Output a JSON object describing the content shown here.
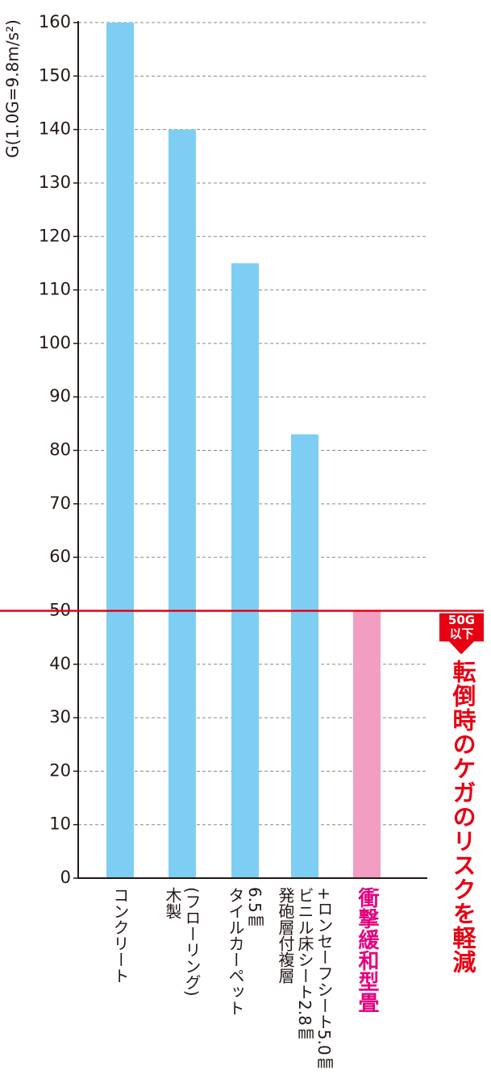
{
  "chart_data": {
    "type": "bar",
    "y_label": "G(1.0G=9.8m/s²)",
    "categories": [
      "コンクリート",
      "木製\n(フローリング)",
      "タイルカーペット\n6.5㎜",
      "発砲層付複層\nビニル床シート2.8㎜\n+ロンセーフシート5.0㎜",
      "衝撃緩和型畳"
    ],
    "values": [
      160,
      140,
      115,
      83,
      50
    ],
    "colors": [
      "#7ecef4",
      "#7ecef4",
      "#7ecef4",
      "#7ecef4",
      "#f19ec2"
    ],
    "label_colors": [
      "#231815",
      "#231815",
      "#231815",
      "#231815",
      "#e4007f"
    ],
    "ylim": [
      0,
      160
    ],
    "yticks": [
      0,
      10,
      20,
      30,
      40,
      50,
      60,
      70,
      80,
      90,
      100,
      110,
      120,
      130,
      140,
      150,
      160
    ],
    "grid": true,
    "reference_line": {
      "value": 50,
      "color": "#e60012",
      "badge": "50G\n以下",
      "note": "転倒時のケガのリスクを軽減"
    }
  }
}
